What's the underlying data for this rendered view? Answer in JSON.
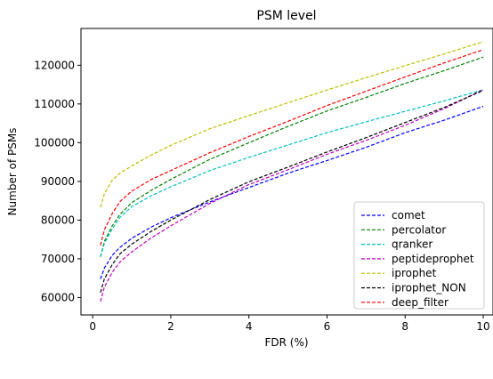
{
  "chart_data": {
    "type": "line",
    "title": "PSM level",
    "xlabel": "FDR (%)",
    "ylabel": "Number of PSMs",
    "xlim": [
      -0.3,
      10.25
    ],
    "ylim": [
      55500,
      129500
    ],
    "xticks": [
      0,
      2,
      4,
      6,
      8,
      10
    ],
    "yticks": [
      60000,
      70000,
      80000,
      90000,
      100000,
      110000,
      120000
    ],
    "grid": false,
    "legend_position": "lower-right",
    "x": [
      0.2,
      0.3,
      0.5,
      0.7,
      1.0,
      1.5,
      2,
      3,
      4,
      5,
      6,
      7,
      8,
      9,
      10
    ],
    "series": [
      {
        "name": "comet",
        "color": "#0000ff",
        "values": [
          64800,
          67600,
          70900,
          73000,
          75300,
          78200,
          80600,
          84700,
          88400,
          92100,
          95400,
          98800,
          102600,
          105800,
          109400
        ]
      },
      {
        "name": "percolator",
        "color": "#008000",
        "values": [
          70500,
          74500,
          78500,
          81500,
          84500,
          87700,
          90500,
          95700,
          100000,
          104200,
          108200,
          111700,
          115300,
          118600,
          122100
        ]
      },
      {
        "name": "qranker",
        "color": "#00bfbf",
        "values": [
          70500,
          74000,
          77700,
          80700,
          83500,
          86300,
          88600,
          92800,
          96200,
          99400,
          102600,
          105400,
          108100,
          110800,
          113700
        ]
      },
      {
        "name": "peptideprophet",
        "color": "#bf00bf",
        "values": [
          59000,
          62700,
          66500,
          69200,
          71800,
          75400,
          78500,
          84300,
          89200,
          93000,
          97000,
          100600,
          104500,
          108800,
          113700
        ]
      },
      {
        "name": "iprophet",
        "color": "#bfbf00",
        "values": [
          83300,
          86800,
          90300,
          92100,
          94000,
          96800,
          99300,
          103600,
          107000,
          110300,
          113600,
          116800,
          119900,
          122900,
          126100
        ]
      },
      {
        "name": "iprophet_NON",
        "color": "#000000",
        "values": [
          61300,
          64800,
          68500,
          71300,
          73800,
          77100,
          80000,
          85300,
          89900,
          93700,
          97600,
          101300,
          105200,
          109100,
          113500
        ]
      },
      {
        "name": "deep_filter",
        "color": "#ff0000",
        "values": [
          73500,
          77500,
          81700,
          84800,
          87500,
          90500,
          92800,
          97400,
          101600,
          105500,
          109600,
          113300,
          117000,
          120600,
          124000
        ]
      }
    ]
  }
}
